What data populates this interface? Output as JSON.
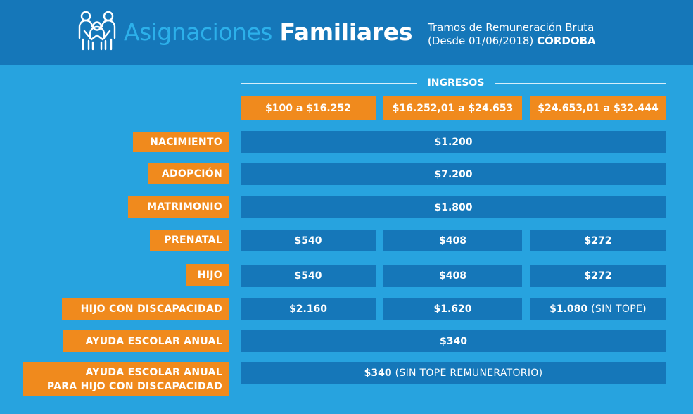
{
  "header": {
    "title_light": "Asignaciones",
    "title_bold": "Familiares",
    "subtitle_line1": "Tramos de Remuneración Bruta",
    "subtitle_line2_prefix": "(Desde 01/06/2018)",
    "subtitle_line2_city": "CÓRDOBA",
    "logo_icon": "family-icon"
  },
  "ingresos": {
    "label": "INGRESOS",
    "ranges": [
      "$100 a $16.252",
      "$16.252,01 a $24.653",
      "$24.653,01 a $32.444"
    ]
  },
  "rows": [
    {
      "label": "NACIMIENTO",
      "value": "$1.200"
    },
    {
      "label": "ADOPCIÓN",
      "value": "$7.200"
    },
    {
      "label": "MATRIMONIO",
      "value": "$1.800"
    },
    {
      "label": "PRENATAL",
      "values": [
        "$540",
        "$408",
        "$272"
      ]
    },
    {
      "label": "HIJO",
      "values": [
        "$540",
        "$408",
        "$272"
      ]
    },
    {
      "label": "HIJO CON DISCAPACIDAD",
      "values": [
        "$2.160",
        "$1.620",
        "$1.080"
      ],
      "note3": "(SIN TOPE)"
    },
    {
      "label": "AYUDA ESCOLAR ANUAL",
      "value": "$340"
    },
    {
      "label_line1": "AYUDA ESCOLAR ANUAL",
      "label_line2": "PARA HIJO CON DISCAPACIDAD",
      "value": "$340",
      "note": "(SIN TOPE REMUNERATORIO)"
    }
  ],
  "colors": {
    "background": "#27a3df",
    "header": "#1577b9",
    "orange": "#f08a1d",
    "cell": "#1577b9"
  }
}
